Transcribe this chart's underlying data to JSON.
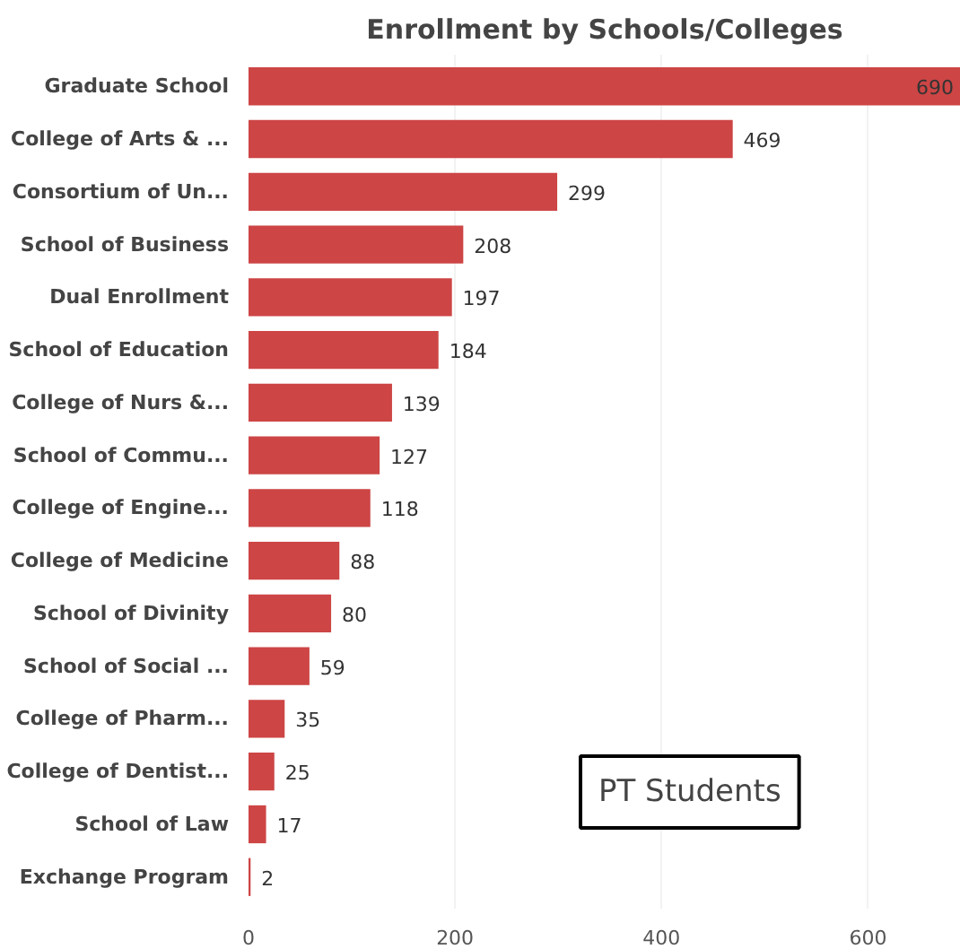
{
  "chart_data": {
    "type": "bar",
    "orientation": "horizontal",
    "title": "Enrollment by Schools/Colleges",
    "categories": [
      "Graduate School",
      "College of Arts & ...",
      "Consortium of Un...",
      "School of Business",
      "Dual Enrollment",
      "School of Education",
      "College of Nurs &...",
      "School of Commu...",
      "College of Engine...",
      "College of Medicine",
      "School of Divinity",
      "School of Social ...",
      "College of Pharm...",
      "College of Dentist...",
      "School of Law",
      "Exchange Program"
    ],
    "values": [
      690,
      469,
      299,
      208,
      197,
      184,
      139,
      127,
      118,
      88,
      80,
      59,
      35,
      25,
      17,
      2
    ],
    "color": "#cd4545",
    "xlim": [
      0,
      690
    ],
    "xticks": [
      0,
      200,
      400,
      600
    ],
    "grid": "x",
    "data_labels": true,
    "annotations": [
      "PT Students"
    ]
  }
}
